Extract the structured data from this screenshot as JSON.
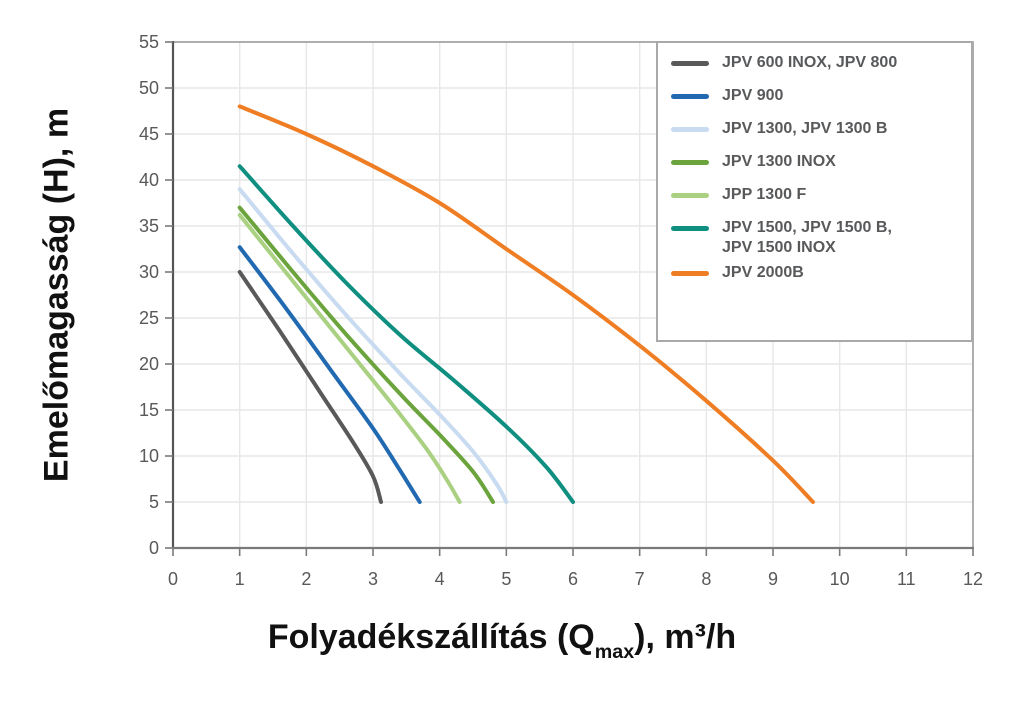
{
  "chart_data": {
    "type": "line",
    "title": "",
    "ylabel": "Emelőmagasság (H), m",
    "xlabel_parts": {
      "prefix": "Folyadékszállítás (Q",
      "subscript": "max",
      "suffix": "), m³/h"
    },
    "xlim": [
      0,
      12
    ],
    "ylim": [
      0,
      55
    ],
    "xticks": [
      0,
      1,
      2,
      3,
      4,
      5,
      6,
      7,
      8,
      9,
      10,
      11,
      12
    ],
    "yticks": [
      0,
      5,
      10,
      15,
      20,
      25,
      30,
      35,
      40,
      45,
      50,
      55
    ],
    "grid": true,
    "legend_position": "top-right",
    "colors": {
      "axis": "#7a7a7a",
      "border": "#9a9a9a",
      "gridline": "#e7e7e7",
      "tick_label": "#595959",
      "legend_border": "#a9a9a9",
      "legend_text": "#58595b",
      "title_text": "#111111"
    },
    "series": [
      {
        "name": "JPV 600 INOX, JPV 800",
        "label_lines": [
          "JPV 600 INOX, JPV 800"
        ],
        "color": "#595959",
        "points": [
          [
            1,
            30
          ],
          [
            1.6,
            23.6
          ],
          [
            2.2,
            17.0
          ],
          [
            2.7,
            11.5
          ],
          [
            3.0,
            7.8
          ],
          [
            3.12,
            5
          ]
        ]
      },
      {
        "name": "JPV 900",
        "label_lines": [
          "JPV 900"
        ],
        "color": "#2169b0",
        "points": [
          [
            1,
            32.7
          ],
          [
            1.7,
            26.0
          ],
          [
            2.4,
            19.0
          ],
          [
            3.0,
            13.0
          ],
          [
            3.4,
            8.5
          ],
          [
            3.7,
            5
          ]
        ]
      },
      {
        "name": "JPV 1300, JPV 1300 B",
        "label_lines": [
          "JPV 1300, JPV 1300 B"
        ],
        "color": "#c8dbf0",
        "points": [
          [
            1,
            39
          ],
          [
            1.8,
            32.0
          ],
          [
            2.6,
            25.3
          ],
          [
            3.4,
            19.0
          ],
          [
            4.0,
            14.5
          ],
          [
            4.5,
            10.5
          ],
          [
            4.85,
            7.0
          ],
          [
            5.0,
            5
          ]
        ]
      },
      {
        "name": "JPV 1300 INOX",
        "label_lines": [
          "JPV 1300 INOX"
        ],
        "color": "#6ba43c",
        "points": [
          [
            1,
            37
          ],
          [
            1.8,
            30.0
          ],
          [
            2.6,
            23.2
          ],
          [
            3.4,
            16.8
          ],
          [
            4.0,
            12.3
          ],
          [
            4.5,
            8.3
          ],
          [
            4.8,
            5
          ]
        ]
      },
      {
        "name": "JPP 1300 F",
        "label_lines": [
          "JPP 1300 F"
        ],
        "color": "#aad182",
        "points": [
          [
            1,
            36.2
          ],
          [
            1.8,
            29.0
          ],
          [
            2.6,
            21.8
          ],
          [
            3.3,
            15.5
          ],
          [
            3.8,
            10.8
          ],
          [
            4.1,
            7.5
          ],
          [
            4.3,
            5
          ]
        ]
      },
      {
        "name": "JPV 1500, JPV 1500 B, JPV 1500 INOX",
        "label_lines": [
          "JPV 1500, JPV 1500 B,",
          "JPV 1500 INOX"
        ],
        "color": "#0f8f80",
        "points": [
          [
            1,
            41.5
          ],
          [
            1.8,
            35.0
          ],
          [
            2.6,
            28.8
          ],
          [
            3.4,
            23.2
          ],
          [
            4.2,
            18.3
          ],
          [
            5.0,
            13.2
          ],
          [
            5.6,
            8.8
          ],
          [
            6.0,
            5
          ]
        ]
      },
      {
        "name": "JPV 2000B",
        "label_lines": [
          "JPV 2000B"
        ],
        "color": "#ef7d23",
        "points": [
          [
            1,
            48
          ],
          [
            2,
            45.0
          ],
          [
            3,
            41.5
          ],
          [
            4,
            37.5
          ],
          [
            5,
            32.5
          ],
          [
            6,
            27.5
          ],
          [
            7,
            22.0
          ],
          [
            8,
            16.0
          ],
          [
            9,
            9.5
          ],
          [
            9.6,
            5
          ]
        ]
      }
    ]
  }
}
